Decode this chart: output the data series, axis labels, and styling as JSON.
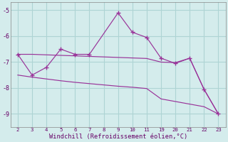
{
  "bg_color": "#d4ecec",
  "grid_color": "#aed4d4",
  "line_color": "#993399",
  "xlabel": "Windchill (Refroidissement éolien,°C)",
  "xlim": [
    -0.5,
    14.5
  ],
  "ylim": [
    -9.5,
    -4.7
  ],
  "xtick_labels": [
    "2",
    "3",
    "4",
    "5",
    "6",
    "7",
    "8",
    "9",
    "10",
    "11",
    "19",
    "20",
    "21",
    "22",
    "23"
  ],
  "yticks": [
    -9,
    -8,
    -7,
    -6,
    -5
  ],
  "line1_pos": [
    0,
    1,
    2,
    3,
    4,
    5,
    7,
    8,
    9,
    10,
    11,
    12,
    13,
    14
  ],
  "line1_y": [
    -6.7,
    -7.5,
    -7.2,
    -6.5,
    -6.7,
    -6.7,
    -5.1,
    -5.85,
    -6.05,
    -6.85,
    -7.05,
    -6.85,
    -8.05,
    -9.0
  ],
  "line2_pos": [
    0,
    1,
    2,
    3,
    4,
    5,
    6,
    7,
    8,
    9,
    10,
    11,
    12,
    13,
    14
  ],
  "line2_y": [
    -6.7,
    -6.7,
    -6.72,
    -6.74,
    -6.76,
    -6.78,
    -6.8,
    -6.82,
    -6.84,
    -6.86,
    -7.0,
    -7.02,
    -6.85,
    -8.05,
    -9.0
  ],
  "line3_pos": [
    0,
    1,
    2,
    3,
    4,
    5,
    6,
    7,
    8,
    9,
    10,
    11,
    12,
    13,
    14
  ],
  "line3_y": [
    -7.5,
    -7.58,
    -7.65,
    -7.72,
    -7.78,
    -7.83,
    -7.88,
    -7.93,
    -7.97,
    -8.02,
    -8.42,
    -8.52,
    -8.62,
    -8.72,
    -9.0
  ]
}
